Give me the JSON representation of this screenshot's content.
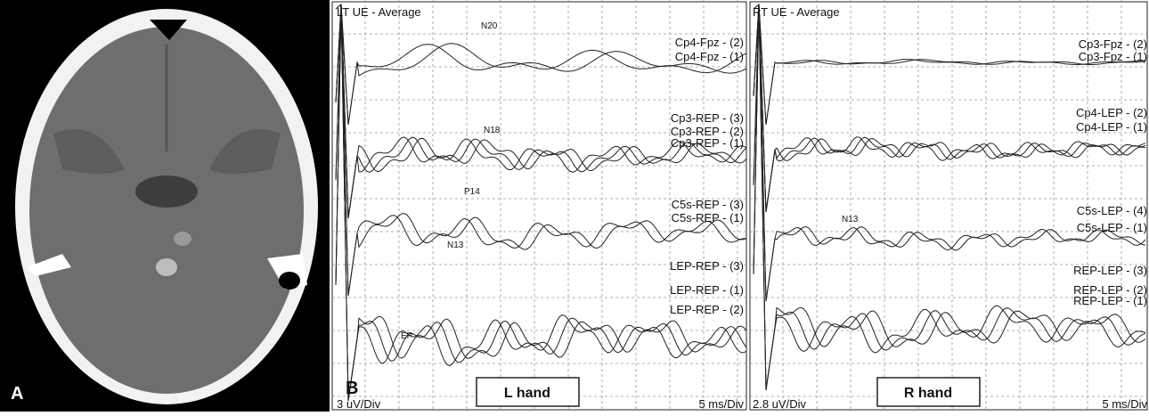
{
  "panel_a": {
    "label": "A"
  },
  "panel_b": {
    "label": "B",
    "left": {
      "title": "LT UE - Average",
      "channels": [
        "Cp4-Fpz - (2)",
        "Cp4-Fpz - (1)",
        "Cp3-REP - (3)",
        "Cp3-REP - (2)",
        "Cp3-REP - (1)",
        "C5s-REP - (3)",
        "C5s-REP - (1)",
        "LEP-REP - (3)",
        "LEP-REP - (1)",
        "LEP-REP - (2)"
      ],
      "peaks": [
        "N20",
        "N18",
        "P14",
        "N13",
        "EP"
      ],
      "scale_y": "3 uV/Div",
      "scale_x": "5 ms/Div",
      "hand": "L hand"
    },
    "right": {
      "title": "RT UE - Average",
      "channels": [
        "Cp3-Fpz - (2)",
        "Cp3-Fpz - (1)",
        "Cp4-LEP - (2)",
        "Cp4-LEP - (1)",
        "C5s-LEP - (4)",
        "C5s-LEP - (1)",
        "REP-LEP - (3)",
        "REP-LEP - (2)",
        "REP-LEP - (1)"
      ],
      "peaks": [
        "N13"
      ],
      "scale_y": "2.8 uV/Div",
      "scale_x": "5 ms/Div",
      "hand": "R hand"
    }
  }
}
